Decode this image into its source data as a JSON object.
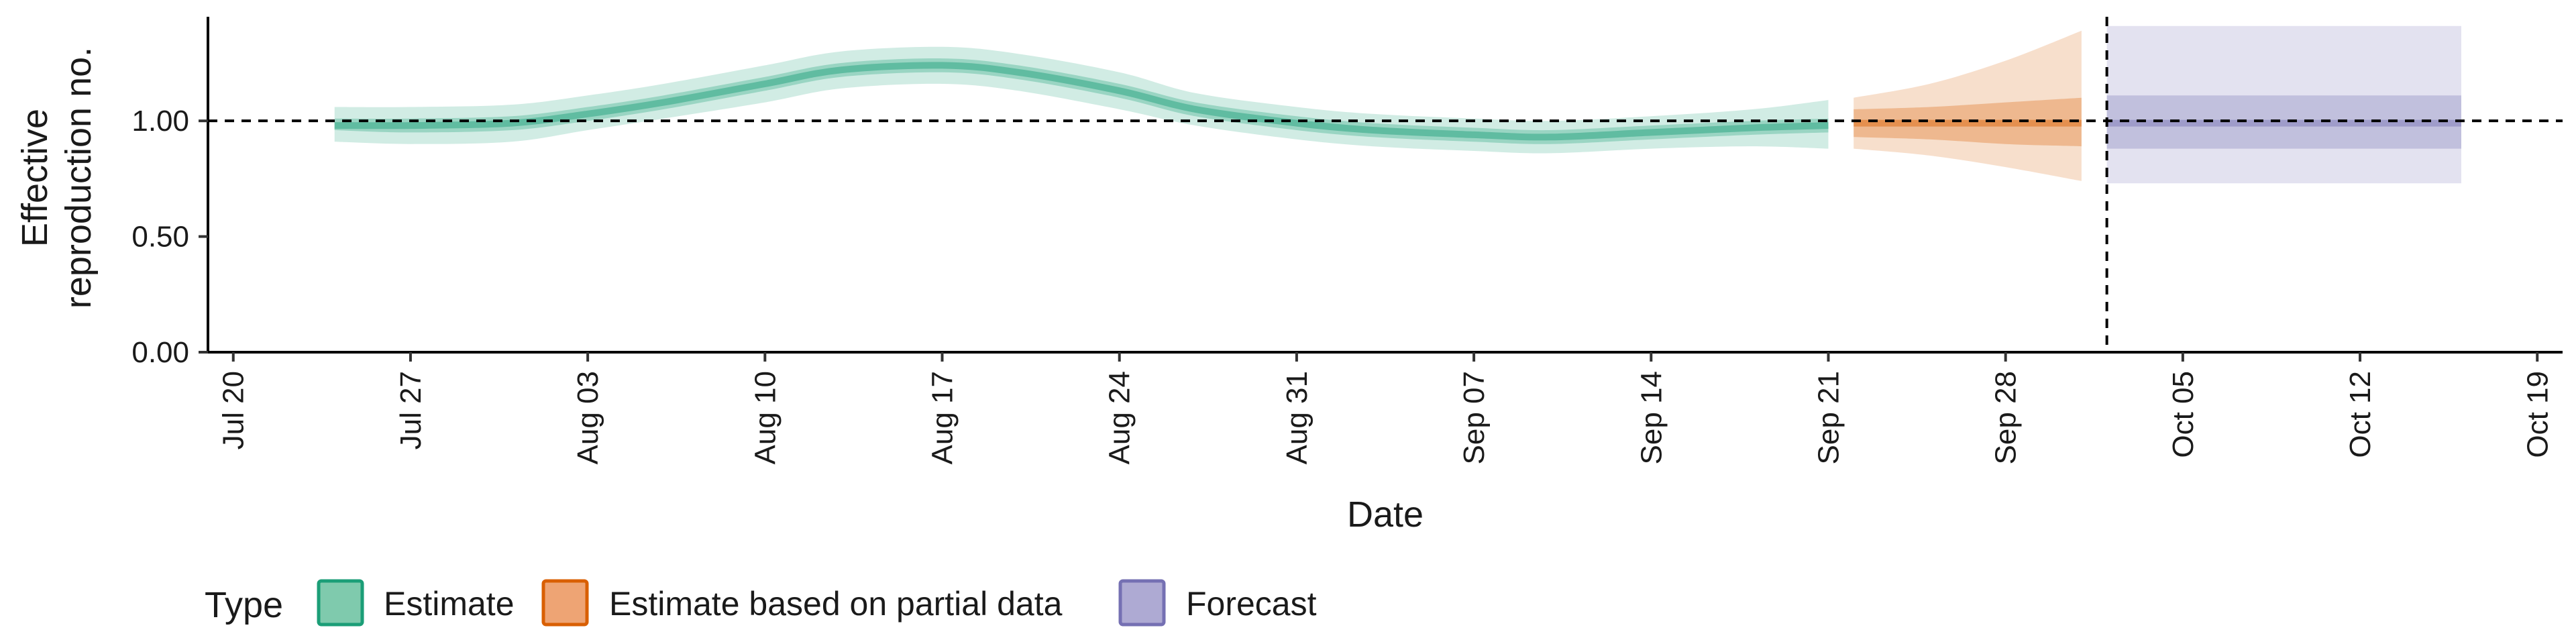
{
  "chart_data": {
    "type": "area",
    "xlabel": "Date",
    "ylabel_lines": [
      "Effective",
      "reproduction no."
    ],
    "x_ticks": [
      "Jul 20",
      "Jul 27",
      "Aug 03",
      "Aug 10",
      "Aug 17",
      "Aug 24",
      "Aug 31",
      "Sep 07",
      "Sep 14",
      "Sep 21",
      "Sep 28",
      "Oct 05",
      "Oct 12",
      "Oct 19"
    ],
    "y_ticks": [
      "0.00",
      "0.50",
      "1.00"
    ],
    "y_tick_values": [
      0,
      0.5,
      1.0
    ],
    "xlim": [
      "2020-07-19",
      "2020-10-20"
    ],
    "ylim": [
      0,
      1.45
    ],
    "reference_line_y": 1.0,
    "reference_line_date": "2020-10-02",
    "legend": {
      "title": "Type",
      "position": "bottom-left",
      "entries": [
        {
          "label": "Estimate",
          "fill": "#7fcaad",
          "stroke": "#1b9e77"
        },
        {
          "label": "Estimate based on partial data",
          "fill": "#eea474",
          "stroke": "#d95f02"
        },
        {
          "label": "Forecast",
          "fill": "#aeaad3",
          "stroke": "#7570b3"
        }
      ]
    },
    "series": [
      {
        "name": "Estimate",
        "color": "#1b9e77",
        "points": [
          {
            "date": "2020-07-24",
            "median": 0.98,
            "lo50": 0.96,
            "hi50": 1.01,
            "lo90": 0.91,
            "hi90": 1.06
          },
          {
            "date": "2020-07-27",
            "median": 0.98,
            "lo50": 0.95,
            "hi50": 1.01,
            "lo90": 0.9,
            "hi90": 1.06
          },
          {
            "date": "2020-07-31",
            "median": 0.99,
            "lo50": 0.96,
            "hi50": 1.02,
            "lo90": 0.91,
            "hi90": 1.07
          },
          {
            "date": "2020-08-03",
            "median": 1.03,
            "lo50": 1.0,
            "hi50": 1.06,
            "lo90": 0.96,
            "hi90": 1.11
          },
          {
            "date": "2020-08-06",
            "median": 1.08,
            "lo50": 1.05,
            "hi50": 1.11,
            "lo90": 1.01,
            "hi90": 1.16
          },
          {
            "date": "2020-08-10",
            "median": 1.16,
            "lo50": 1.13,
            "hi50": 1.19,
            "lo90": 1.08,
            "hi90": 1.24
          },
          {
            "date": "2020-08-13",
            "median": 1.22,
            "lo50": 1.19,
            "hi50": 1.25,
            "lo90": 1.14,
            "hi90": 1.3
          },
          {
            "date": "2020-08-17",
            "median": 1.24,
            "lo50": 1.21,
            "hi50": 1.27,
            "lo90": 1.16,
            "hi90": 1.32
          },
          {
            "date": "2020-08-20",
            "median": 1.21,
            "lo50": 1.18,
            "hi50": 1.24,
            "lo90": 1.13,
            "hi90": 1.29
          },
          {
            "date": "2020-08-24",
            "median": 1.13,
            "lo50": 1.1,
            "hi50": 1.16,
            "lo90": 1.05,
            "hi90": 1.21
          },
          {
            "date": "2020-08-27",
            "median": 1.05,
            "lo50": 1.02,
            "hi50": 1.08,
            "lo90": 0.98,
            "hi90": 1.12
          },
          {
            "date": "2020-08-31",
            "median": 0.99,
            "lo50": 0.96,
            "hi50": 1.02,
            "lo90": 0.92,
            "hi90": 1.06
          },
          {
            "date": "2020-09-03",
            "median": 0.96,
            "lo50": 0.93,
            "hi50": 0.99,
            "lo90": 0.89,
            "hi90": 1.03
          },
          {
            "date": "2020-09-07",
            "median": 0.94,
            "lo50": 0.91,
            "hi50": 0.97,
            "lo90": 0.87,
            "hi90": 1.01
          },
          {
            "date": "2020-09-10",
            "median": 0.93,
            "lo50": 0.9,
            "hi50": 0.96,
            "lo90": 0.86,
            "hi90": 1.0
          },
          {
            "date": "2020-09-14",
            "median": 0.95,
            "lo50": 0.92,
            "hi50": 0.98,
            "lo90": 0.88,
            "hi90": 1.02
          },
          {
            "date": "2020-09-18",
            "median": 0.97,
            "lo50": 0.94,
            "hi50": 1.0,
            "lo90": 0.89,
            "hi90": 1.05
          },
          {
            "date": "2020-09-21",
            "median": 0.98,
            "lo50": 0.95,
            "hi50": 1.01,
            "lo90": 0.88,
            "hi90": 1.09
          }
        ]
      },
      {
        "name": "Estimate based on partial data",
        "color": "#d95f02",
        "points": [
          {
            "date": "2020-09-22",
            "median": 0.99,
            "lo50": 0.93,
            "hi50": 1.05,
            "lo90": 0.88,
            "hi90": 1.1
          },
          {
            "date": "2020-09-25",
            "median": 0.99,
            "lo50": 0.92,
            "hi50": 1.06,
            "lo90": 0.85,
            "hi90": 1.16
          },
          {
            "date": "2020-09-28",
            "median": 0.99,
            "lo50": 0.9,
            "hi50": 1.08,
            "lo90": 0.8,
            "hi90": 1.26
          },
          {
            "date": "2020-10-01",
            "median": 0.99,
            "lo50": 0.89,
            "hi50": 1.1,
            "lo90": 0.74,
            "hi90": 1.39
          }
        ]
      },
      {
        "name": "Forecast",
        "color": "#7570b3",
        "points": [
          {
            "date": "2020-10-02",
            "median": 0.99,
            "lo50": 0.88,
            "hi50": 1.11,
            "lo90": 0.73,
            "hi90": 1.41
          },
          {
            "date": "2020-10-16",
            "median": 0.99,
            "lo50": 0.88,
            "hi50": 1.11,
            "lo90": 0.73,
            "hi90": 1.41
          }
        ]
      }
    ]
  }
}
